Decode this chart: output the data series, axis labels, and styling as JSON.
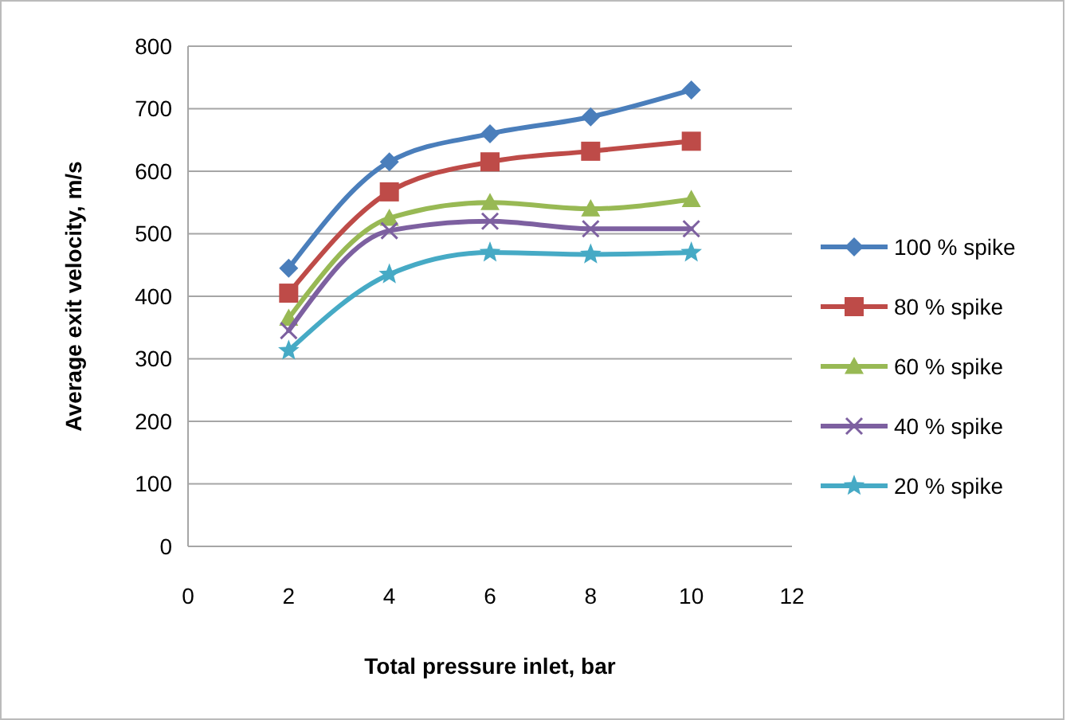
{
  "chart_data": {
    "type": "line",
    "xlabel": "Total pressure inlet, bar",
    "ylabel": "Average exit velocity, m/s",
    "x": [
      2,
      4,
      6,
      8,
      10
    ],
    "xlim": [
      0,
      12
    ],
    "xticks": [
      0,
      2,
      4,
      6,
      8,
      10,
      12
    ],
    "ylim": [
      0,
      800
    ],
    "yticks": [
      0,
      100,
      200,
      300,
      400,
      500,
      600,
      700,
      800
    ],
    "grid": "y",
    "legend": "right",
    "line_style": "solid",
    "series": [
      {
        "name": "100 % spike",
        "color": "#4a7ebb",
        "marker": "diamond",
        "values": [
          445,
          615,
          660,
          687,
          730
        ]
      },
      {
        "name": "80 % spike",
        "color": "#be4b48",
        "marker": "square",
        "values": [
          405,
          567,
          615,
          632,
          648
        ]
      },
      {
        "name": "60 % spike",
        "color": "#98b954",
        "marker": "triangle",
        "values": [
          365,
          525,
          550,
          540,
          555
        ]
      },
      {
        "name": "40 % spike",
        "color": "#7d60a0",
        "marker": "cross",
        "values": [
          345,
          505,
          520,
          508,
          508
        ]
      },
      {
        "name": "20 % spike",
        "color": "#46aac5",
        "marker": "star",
        "values": [
          313,
          435,
          470,
          467,
          470
        ]
      }
    ]
  }
}
